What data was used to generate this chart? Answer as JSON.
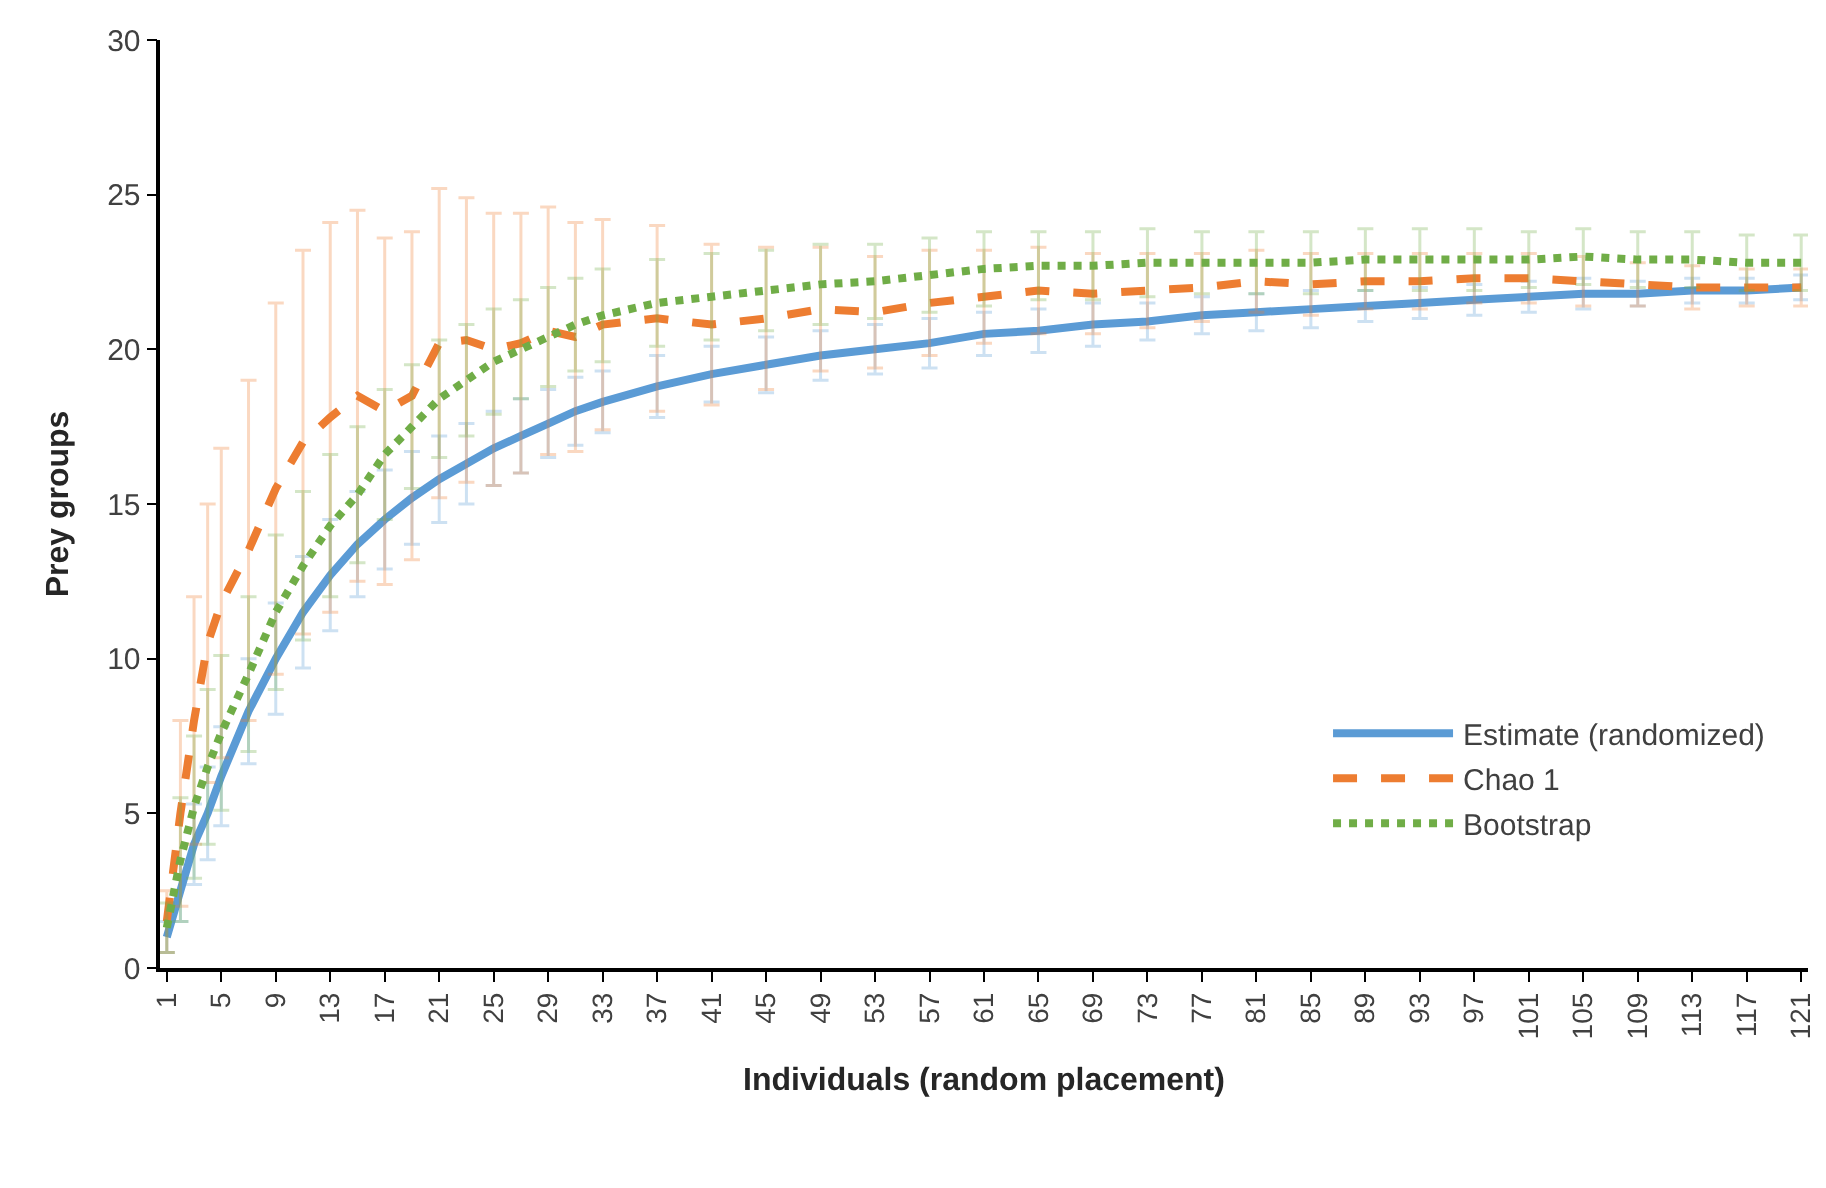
{
  "chart_data": {
    "type": "line",
    "xlabel": "Individuals (random placement)",
    "ylabel": "Prey groups",
    "x": [
      1,
      2,
      3,
      4,
      5,
      7,
      9,
      11,
      13,
      15,
      17,
      19,
      21,
      23,
      25,
      27,
      29,
      31,
      33,
      37,
      41,
      45,
      49,
      53,
      57,
      61,
      65,
      69,
      73,
      77,
      81,
      85,
      89,
      93,
      97,
      101,
      105,
      109,
      113,
      117,
      121
    ],
    "xlim": [
      0.5,
      121.5
    ],
    "xticks": [
      1,
      5,
      9,
      13,
      17,
      21,
      25,
      29,
      33,
      37,
      41,
      45,
      49,
      53,
      57,
      61,
      65,
      69,
      73,
      77,
      81,
      85,
      89,
      93,
      97,
      101,
      105,
      109,
      113,
      117,
      121
    ],
    "ylim": [
      0,
      30
    ],
    "yticks": [
      0,
      5,
      10,
      15,
      20,
      25,
      30
    ],
    "legend": "bottom right",
    "marker": "none",
    "series": [
      {
        "name": "Estimate (randomized)",
        "color": "#5b9bd5",
        "line_style": "solid",
        "values": [
          1,
          2.5,
          4,
          5,
          6.2,
          8.3,
          10,
          11.5,
          12.7,
          13.7,
          14.5,
          15.2,
          15.8,
          16.3,
          16.8,
          17.2,
          17.6,
          18,
          18.3,
          18.8,
          19.2,
          19.5,
          19.8,
          20,
          20.2,
          20.5,
          20.6,
          20.8,
          20.9,
          21.1,
          21.2,
          21.3,
          21.4,
          21.5,
          21.6,
          21.7,
          21.8,
          21.8,
          21.9,
          21.9,
          22
        ],
        "errors": [
          0.5,
          1,
          1.3,
          1.5,
          1.6,
          1.7,
          1.8,
          1.8,
          1.8,
          1.7,
          1.6,
          1.5,
          1.4,
          1.3,
          1.2,
          1.2,
          1.1,
          1.1,
          1,
          1,
          0.9,
          0.9,
          0.8,
          0.8,
          0.8,
          0.7,
          0.7,
          0.7,
          0.6,
          0.6,
          0.6,
          0.6,
          0.5,
          0.5,
          0.5,
          0.5,
          0.5,
          0.4,
          0.4,
          0.4,
          0.4
        ]
      },
      {
        "name": "Chao 1",
        "color": "#ed7d31",
        "line_style": "dashed",
        "values": [
          1.5,
          5,
          8,
          10.5,
          11.8,
          13.5,
          15.5,
          17,
          17.8,
          18.5,
          18,
          18.5,
          20.2,
          20.3,
          20,
          20.2,
          20.6,
          20.4,
          20.8,
          21,
          20.8,
          21,
          21.3,
          21.2,
          21.5,
          21.7,
          21.9,
          21.8,
          21.9,
          22,
          22.2,
          22.1,
          22.2,
          22.2,
          22.3,
          22.3,
          22.2,
          22.1,
          22,
          22,
          22
        ],
        "errors": [
          1,
          3,
          4,
          4.5,
          5,
          5.5,
          6,
          6.2,
          6.3,
          6,
          5.6,
          5.3,
          5,
          4.6,
          4.4,
          4.2,
          4,
          3.7,
          3.4,
          3,
          2.6,
          2.3,
          2,
          1.8,
          1.7,
          1.5,
          1.4,
          1.3,
          1.2,
          1.1,
          1,
          1,
          0.9,
          0.9,
          0.8,
          0.8,
          0.8,
          0.7,
          0.7,
          0.6,
          0.6
        ]
      },
      {
        "name": "Bootstrap",
        "color": "#70ad47",
        "line_style": "dotted",
        "values": [
          1.3,
          3.5,
          5.2,
          6.5,
          7.6,
          9.5,
          11.5,
          13,
          14.3,
          15.3,
          16.6,
          17.5,
          18.4,
          19,
          19.6,
          20,
          20.4,
          20.8,
          21.1,
          21.5,
          21.7,
          21.9,
          22.1,
          22.2,
          22.4,
          22.6,
          22.7,
          22.7,
          22.8,
          22.8,
          22.8,
          22.8,
          22.9,
          22.9,
          22.9,
          22.9,
          23,
          22.9,
          22.9,
          22.8,
          22.8
        ],
        "errors": [
          0.8,
          2,
          2.3,
          2.5,
          2.5,
          2.5,
          2.5,
          2.4,
          2.3,
          2.2,
          2.1,
          2,
          1.9,
          1.8,
          1.7,
          1.6,
          1.6,
          1.5,
          1.5,
          1.4,
          1.4,
          1.3,
          1.3,
          1.2,
          1.2,
          1.2,
          1.1,
          1.1,
          1.1,
          1,
          1,
          1,
          1,
          1,
          1,
          0.9,
          0.9,
          0.9,
          0.9,
          0.9,
          0.9
        ]
      }
    ]
  }
}
